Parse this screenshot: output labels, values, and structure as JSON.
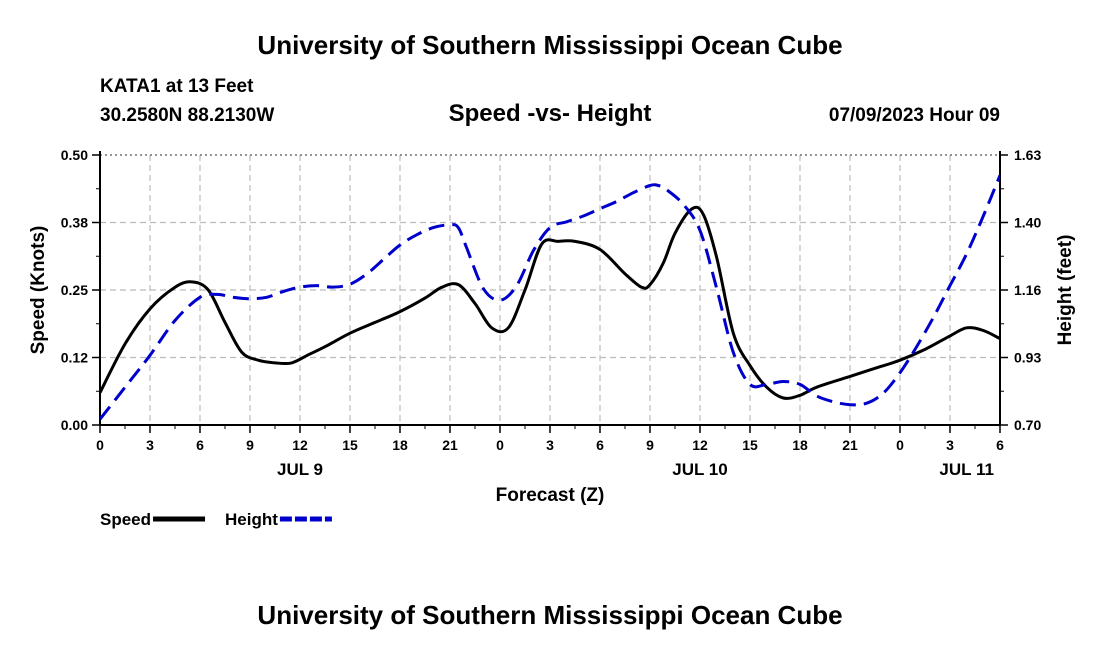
{
  "page": {
    "title_top": "University of Southern Mississippi Ocean Cube",
    "title_bottom": "University of Southern Mississippi Ocean Cube",
    "station": "KATA1 at 13 Feet",
    "coords": "30.2580N  88.2130W",
    "timestamp": "07/09/2023 Hour 09"
  },
  "chart_data": {
    "type": "line",
    "title": "Speed -vs- Height",
    "xlabel": "Forecast (Z)",
    "ylabel": "Speed (Knots)",
    "y2label": "Height (feet)",
    "xlim": [
      0,
      54
    ],
    "ylim": [
      0,
      0.5
    ],
    "y2lim": [
      0.7,
      1.63
    ],
    "x_ticks": [
      0,
      3,
      6,
      9,
      12,
      15,
      18,
      21,
      24,
      27,
      30,
      33,
      36,
      39,
      42,
      45,
      48,
      51,
      54
    ],
    "x_tick_labels": [
      "0",
      "3",
      "6",
      "9",
      "12",
      "15",
      "18",
      "21",
      "0",
      "3",
      "6",
      "9",
      "12",
      "15",
      "18",
      "21",
      "0",
      "3",
      "6"
    ],
    "y_ticks": [
      0,
      0.125,
      0.25,
      0.375,
      0.5
    ],
    "y_tick_labels": [
      "0.00",
      "0.12",
      "0.25",
      "0.38",
      "0.50"
    ],
    "y2_tick_labels": [
      "0.70",
      "0.93",
      "1.16",
      "1.40",
      "1.63"
    ],
    "day_labels": [
      {
        "x": 12,
        "label": "JUL 9"
      },
      {
        "x": 36,
        "label": "JUL 10"
      },
      {
        "x": 52,
        "label": "JUL 11"
      }
    ],
    "legend": [
      {
        "name": "Speed",
        "color": "#000000",
        "dash": false
      },
      {
        "name": "Height",
        "color": "#0000cc",
        "dash": true
      }
    ],
    "series": [
      {
        "name": "Speed",
        "axis": "left",
        "color": "#000000",
        "x": [
          0,
          1.5,
          3,
          4.5,
          5.5,
          6.5,
          7.5,
          8.5,
          9.5,
          10.5,
          11.5,
          12.5,
          13.5,
          15,
          16.5,
          18,
          19.5,
          20.5,
          21.5,
          22.5,
          23.5,
          24.5,
          25.5,
          26.5,
          27.5,
          28.5,
          30,
          31.5,
          32.5,
          33,
          33.8,
          34.5,
          35.5,
          36.2,
          37,
          38,
          39,
          40,
          41,
          42,
          43,
          45,
          46.5,
          48,
          49.5,
          51,
          52,
          53,
          54
        ],
        "y": [
          0.06,
          0.15,
          0.215,
          0.255,
          0.265,
          0.25,
          0.19,
          0.135,
          0.12,
          0.115,
          0.115,
          0.13,
          0.145,
          0.17,
          0.19,
          0.21,
          0.235,
          0.255,
          0.26,
          0.225,
          0.18,
          0.18,
          0.25,
          0.335,
          0.34,
          0.34,
          0.325,
          0.28,
          0.255,
          0.26,
          0.3,
          0.355,
          0.4,
          0.39,
          0.31,
          0.17,
          0.11,
          0.07,
          0.05,
          0.055,
          0.07,
          0.09,
          0.105,
          0.12,
          0.14,
          0.165,
          0.18,
          0.175,
          0.16
        ]
      },
      {
        "name": "Height",
        "axis": "right",
        "color": "#0000cc",
        "x": [
          0,
          1.5,
          3,
          4.5,
          6,
          7,
          8,
          9,
          10,
          11,
          12,
          13,
          14,
          15,
          16,
          17,
          18,
          19,
          20,
          21,
          21.5,
          22,
          23,
          24,
          25,
          26,
          27,
          28,
          29,
          30,
          31,
          32,
          33,
          33.5,
          34,
          35,
          36,
          37,
          38,
          39,
          40,
          41,
          42,
          43,
          44,
          45,
          46,
          47,
          48,
          49,
          50,
          51,
          52,
          53,
          54
        ],
        "y": [
          0.72,
          0.83,
          0.94,
          1.06,
          1.14,
          1.15,
          1.14,
          1.135,
          1.14,
          1.16,
          1.175,
          1.18,
          1.175,
          1.185,
          1.22,
          1.27,
          1.32,
          1.355,
          1.38,
          1.39,
          1.38,
          1.31,
          1.17,
          1.13,
          1.18,
          1.3,
          1.38,
          1.4,
          1.42,
          1.445,
          1.47,
          1.5,
          1.525,
          1.525,
          1.51,
          1.46,
          1.37,
          1.17,
          0.95,
          0.84,
          0.84,
          0.85,
          0.84,
          0.8,
          0.78,
          0.77,
          0.775,
          0.81,
          0.88,
          0.97,
          1.07,
          1.18,
          1.29,
          1.42,
          1.56
        ]
      }
    ]
  }
}
